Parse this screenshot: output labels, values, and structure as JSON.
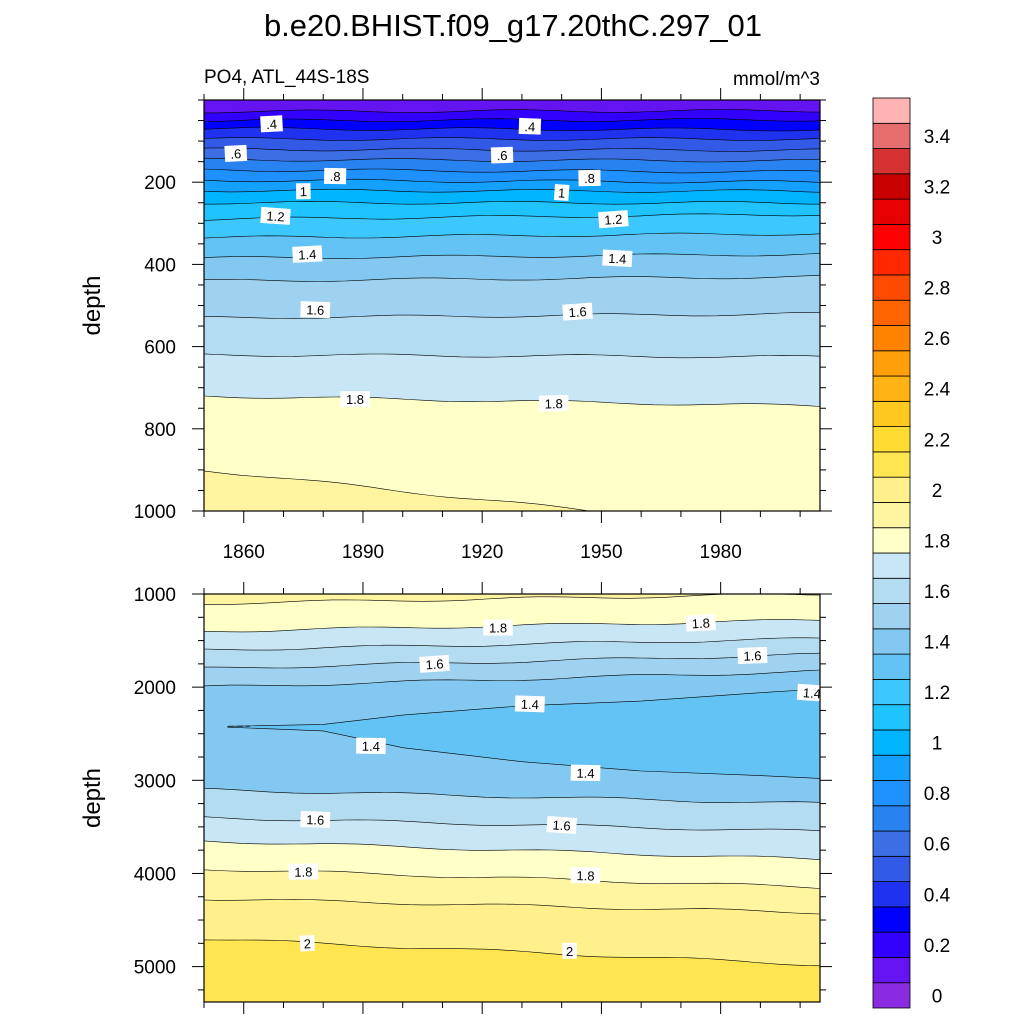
{
  "title": "b.e20.BHIST.f09_g17.20thC.297_01",
  "left_string": "PO4, ATL_44S-18S",
  "right_string": "mmol/m^3",
  "chart_data": {
    "type": "heatmap",
    "kind": "filled depth-time contour (Hovmoller) with line contours and labels",
    "x": {
      "range": [
        1850,
        2005
      ],
      "ticks": [
        1860,
        1890,
        1920,
        1950,
        1980
      ],
      "tick_labels": [
        "1860",
        "1890",
        "1920",
        "1950",
        "1980"
      ]
    },
    "panels": [
      {
        "name": "upper",
        "ylabel": "depth",
        "ylim": [
          0,
          1000
        ],
        "y_ticks": [
          200,
          400,
          600,
          800,
          1000
        ],
        "y_tick_labels": [
          "200",
          "400",
          "600",
          "800",
          "1000"
        ],
        "show_x_tick_labels": true,
        "contour_depths": [
          {
            "v": 0.2,
            "d": [
              28,
              26
            ]
          },
          {
            "v": 0.3,
            "d": [
              50,
              48
            ]
          },
          {
            "v": 0.4,
            "d": [
              70,
              72
            ]
          },
          {
            "v": 0.5,
            "d": [
              95,
              95
            ]
          },
          {
            "v": 0.6,
            "d": [
              120,
              122
            ]
          },
          {
            "v": 0.7,
            "d": [
              145,
              148
            ]
          },
          {
            "v": 0.8,
            "d": [
              170,
              175
            ]
          },
          {
            "v": 0.9,
            "d": [
              195,
              200
            ]
          },
          {
            "v": 1.0,
            "d": [
              220,
              222
            ]
          },
          {
            "v": 1.1,
            "d": [
              250,
              250
            ]
          },
          {
            "v": 1.2,
            "d": [
              290,
              278
            ]
          },
          {
            "v": 1.3,
            "d": [
              335,
              325
            ]
          },
          {
            "v": 1.4,
            "d": [
              385,
              375
            ]
          },
          {
            "v": 1.5,
            "d": [
              440,
              430
            ]
          },
          {
            "v": 1.6,
            "d": [
              530,
              520
            ]
          },
          {
            "v": 1.7,
            "d": [
              620,
              625
            ]
          },
          {
            "v": 1.8,
            "d": [
              720,
              745
            ]
          },
          {
            "v": 1.9,
            "d": [
              900,
              1060
            ]
          }
        ],
        "labels": [
          {
            "t": ".4",
            "x": 1867,
            "y": 58
          },
          {
            "t": ".4",
            "x": 1932,
            "y": 64
          },
          {
            "t": ".6",
            "x": 1858,
            "y": 130
          },
          {
            "t": ".6",
            "x": 1925,
            "y": 134
          },
          {
            "t": ".8",
            "x": 1883,
            "y": 185
          },
          {
            "t": ".8",
            "x": 1947,
            "y": 190
          },
          {
            "t": "1",
            "x": 1875,
            "y": 222
          },
          {
            "t": "1",
            "x": 1940,
            "y": 225
          },
          {
            "t": "1.2",
            "x": 1868,
            "y": 282
          },
          {
            "t": "1.2",
            "x": 1953,
            "y": 290
          },
          {
            "t": "1.4",
            "x": 1876,
            "y": 375
          },
          {
            "t": "1.4",
            "x": 1954,
            "y": 385
          },
          {
            "t": "1.6",
            "x": 1878,
            "y": 510
          },
          {
            "t": "1.6",
            "x": 1944,
            "y": 515
          },
          {
            "t": "1.8",
            "x": 1888,
            "y": 728
          },
          {
            "t": "1.8",
            "x": 1938,
            "y": 738
          }
        ]
      },
      {
        "name": "lower",
        "ylabel": "depth",
        "ylim": [
          1000,
          5380
        ],
        "y_ticks": [
          1000,
          2000,
          3000,
          4000,
          5000
        ],
        "y_tick_labels": [
          "1000",
          "2000",
          "3000",
          "4000",
          "5000"
        ],
        "show_x_tick_labels": false,
        "contour_depths": [
          {
            "v": 1.9,
            "d": [
              1100,
              1000
            ]
          },
          {
            "v": 1.8,
            "d": [
              1400,
              1280
            ]
          },
          {
            "v": 1.7,
            "d": [
              1600,
              1480
            ]
          },
          {
            "v": 1.6,
            "d": [
              1800,
              1650
            ]
          },
          {
            "v": 1.5,
            "d": [
              2000,
              1830
            ]
          },
          {
            "v": 1.6,
            "d": [
              3100,
              3250
            ]
          },
          {
            "v": 1.7,
            "d": [
              3400,
              3550
            ]
          },
          {
            "v": 1.8,
            "d": [
              3650,
              3850
            ]
          },
          {
            "v": 1.9,
            "d": [
              3950,
              4150
            ]
          },
          {
            "v": 2.0,
            "d": [
              4270,
              4420
            ]
          },
          {
            "v": 2.1,
            "d": [
              4700,
              4980
            ]
          }
        ],
        "core_1_4": {
          "x": [
            1856,
            1880,
            1900,
            1930,
            1960,
            1990,
            2005
          ],
          "top": [
            2420,
            2400,
            2300,
            2200,
            2150,
            2060,
            2020
          ],
          "bottom": [
            2430,
            2470,
            2650,
            2800,
            2900,
            2950,
            2980
          ]
        },
        "labels": [
          {
            "t": "1.8",
            "x": 1924,
            "y": 1360
          },
          {
            "t": "1.8",
            "x": 1975,
            "y": 1310
          },
          {
            "t": "1.6",
            "x": 1908,
            "y": 1750
          },
          {
            "t": "1.6",
            "x": 1988,
            "y": 1660
          },
          {
            "t": "1.4",
            "x": 1932,
            "y": 2180
          },
          {
            "t": "1.4",
            "x": 2003,
            "y": 2060
          },
          {
            "t": "1.4",
            "x": 1892,
            "y": 2630
          },
          {
            "t": "1.4",
            "x": 1946,
            "y": 2920
          },
          {
            "t": "1.6",
            "x": 1878,
            "y": 3420
          },
          {
            "t": "1.6",
            "x": 1940,
            "y": 3480
          },
          {
            "t": "1.8",
            "x": 1875,
            "y": 3980
          },
          {
            "t": "1.8",
            "x": 1946,
            "y": 4020
          },
          {
            "t": "2",
            "x": 1876,
            "y": 4750
          },
          {
            "t": "2",
            "x": 1942,
            "y": 4830
          }
        ]
      }
    ],
    "colorbar": {
      "levels": [
        0,
        0.1,
        0.2,
        0.3,
        0.4,
        0.5,
        0.6,
        0.7,
        0.8,
        0.9,
        1,
        1.1,
        1.2,
        1.3,
        1.4,
        1.5,
        1.6,
        1.7,
        1.8,
        1.9,
        2,
        2.1,
        2.2,
        2.3,
        2.4,
        2.5,
        2.6,
        2.7,
        2.8,
        2.9,
        3,
        3.1,
        3.2,
        3.3,
        3.4,
        3.5
      ],
      "colors": [
        "#8a2be2",
        "#6414f0",
        "#3200ff",
        "#0000ff",
        "#1e32f0",
        "#325ae6",
        "#3c6ee6",
        "#2882f0",
        "#1e91ff",
        "#14a0ff",
        "#00b4ff",
        "#1ec3ff",
        "#3cc8ff",
        "#64c3f5",
        "#82c8f0",
        "#9fd2f0",
        "#b4dcf0",
        "#c8e6f5",
        "#ffffc8",
        "#fff5a0",
        "#fff08c",
        "#ffe650",
        "#ffdc32",
        "#ffc81e",
        "#ffb414",
        "#ffa00a",
        "#ff8200",
        "#ff6400",
        "#ff4b00",
        "#ff2800",
        "#ff0000",
        "#e60000",
        "#c80000",
        "#d73232",
        "#e66e6e",
        "#ffb4b4"
      ],
      "tick_labels": [
        "0",
        "0.2",
        "0.4",
        "0.6",
        "0.8",
        "1",
        "1.2",
        "1.4",
        "1.6",
        "1.8",
        "2",
        "2.2",
        "2.4",
        "2.6",
        "2.8",
        "3",
        "3.2",
        "3.4"
      ]
    }
  }
}
